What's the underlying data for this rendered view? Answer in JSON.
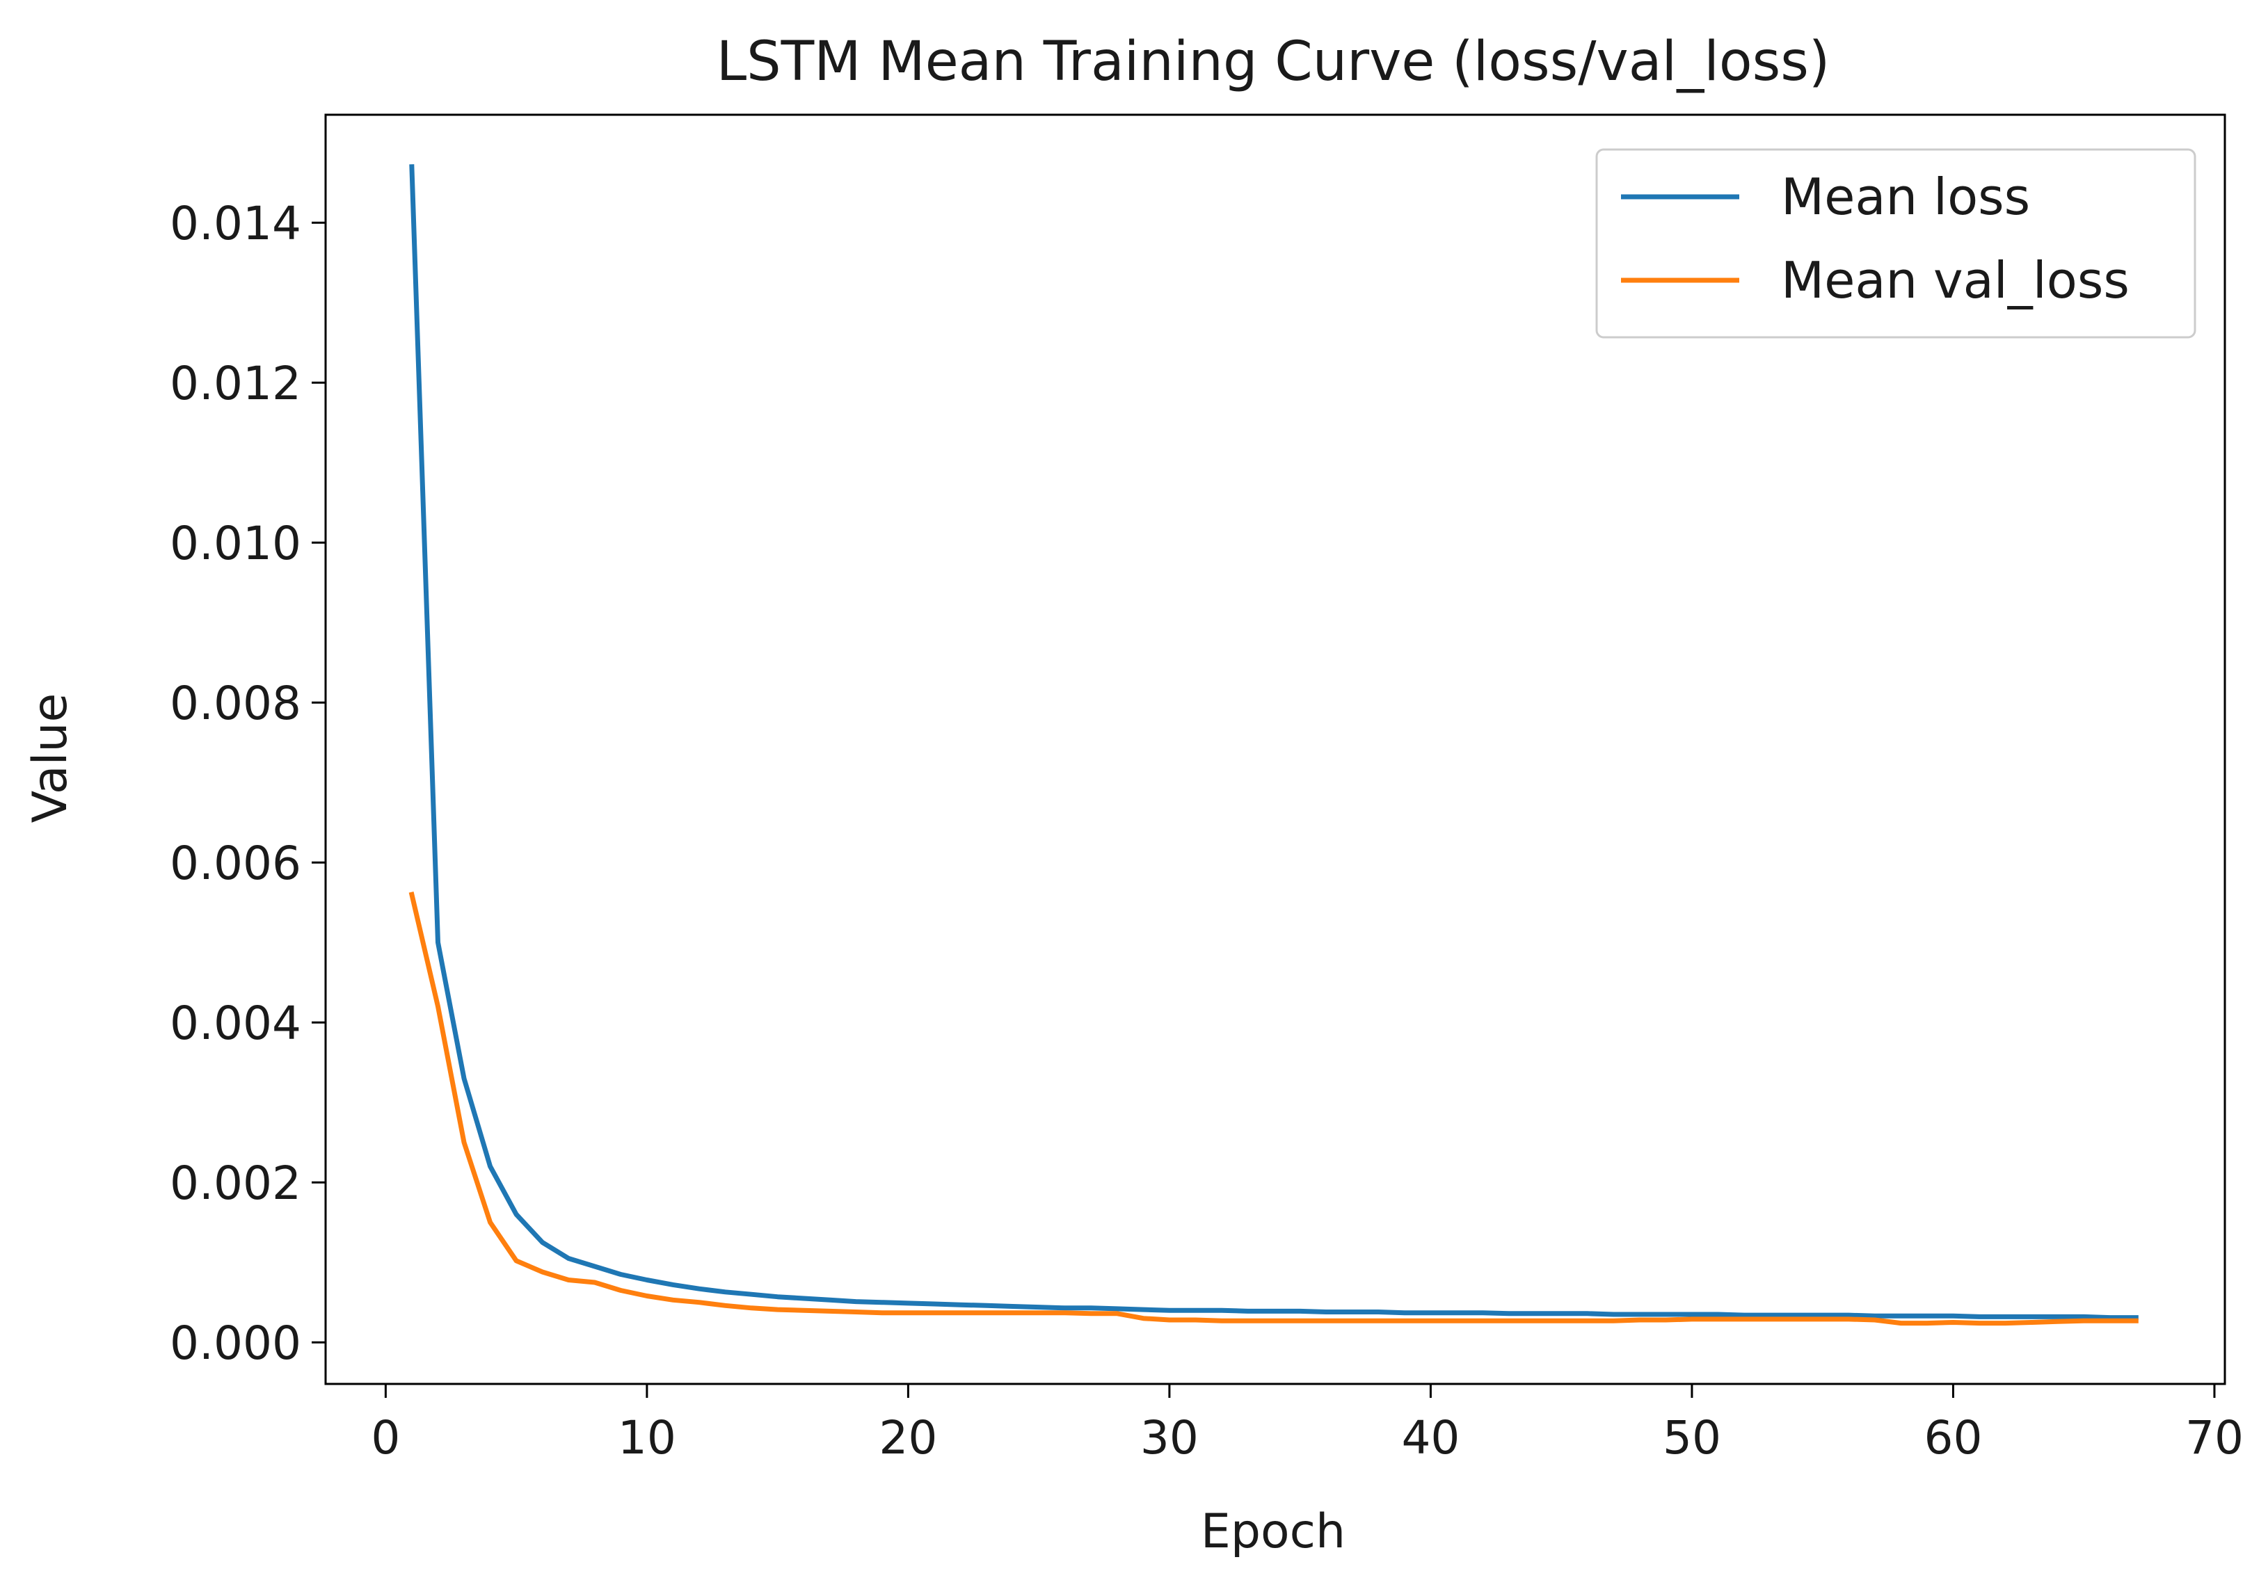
{
  "chart_data": {
    "type": "line",
    "title": "LSTM Mean Training Curve (loss/val_loss)",
    "xlabel": "Epoch",
    "ylabel": "Value",
    "xlim": [
      -2.3,
      70.4
    ],
    "ylim": [
      -0.00052,
      0.01535
    ],
    "xticks": [
      0,
      10,
      20,
      30,
      40,
      50,
      60,
      70
    ],
    "yticks": [
      0.0,
      0.002,
      0.004,
      0.006,
      0.008,
      0.01,
      0.012,
      0.014
    ],
    "ytick_labels": [
      "0.000",
      "0.002",
      "0.004",
      "0.006",
      "0.008",
      "0.010",
      "0.012",
      "0.014"
    ],
    "grid": false,
    "legend_position": "upper right",
    "x": [
      1,
      2,
      3,
      4,
      5,
      6,
      7,
      8,
      9,
      10,
      11,
      12,
      13,
      14,
      15,
      16,
      17,
      18,
      19,
      20,
      21,
      22,
      23,
      24,
      25,
      26,
      27,
      28,
      29,
      30,
      31,
      32,
      33,
      34,
      35,
      36,
      37,
      38,
      39,
      40,
      41,
      42,
      43,
      44,
      45,
      46,
      47,
      48,
      49,
      50,
      51,
      52,
      53,
      54,
      55,
      56,
      57,
      58,
      59,
      60,
      61,
      62,
      63,
      64,
      65,
      66,
      67
    ],
    "series": [
      {
        "name": "Mean loss",
        "color": "#1f77b4",
        "values": [
          0.0147,
          0.005,
          0.0033,
          0.0022,
          0.0016,
          0.00125,
          0.00105,
          0.00095,
          0.00085,
          0.00078,
          0.00072,
          0.00067,
          0.00063,
          0.0006,
          0.00057,
          0.00055,
          0.00053,
          0.00051,
          0.0005,
          0.00049,
          0.00048,
          0.00047,
          0.00046,
          0.00045,
          0.00044,
          0.00043,
          0.00043,
          0.00042,
          0.00041,
          0.0004,
          0.0004,
          0.0004,
          0.00039,
          0.00039,
          0.00039,
          0.00038,
          0.00038,
          0.00038,
          0.00037,
          0.00037,
          0.00037,
          0.00037,
          0.00036,
          0.00036,
          0.00036,
          0.00036,
          0.00035,
          0.00035,
          0.00035,
          0.00035,
          0.00035,
          0.00034,
          0.00034,
          0.00034,
          0.00034,
          0.00034,
          0.00033,
          0.00033,
          0.00033,
          0.00033,
          0.00032,
          0.00032,
          0.00032,
          0.00032,
          0.00032,
          0.00031,
          0.00031
        ]
      },
      {
        "name": "Mean val_loss",
        "color": "#ff7f0e",
        "values": [
          0.0056,
          0.0042,
          0.0025,
          0.0015,
          0.00102,
          0.00088,
          0.00078,
          0.00075,
          0.00065,
          0.00058,
          0.00053,
          0.0005,
          0.00046,
          0.00043,
          0.00041,
          0.0004,
          0.00039,
          0.00038,
          0.00037,
          0.00037,
          0.00037,
          0.00037,
          0.00037,
          0.00037,
          0.00037,
          0.00037,
          0.00036,
          0.00036,
          0.0003,
          0.00028,
          0.00028,
          0.00027,
          0.00027,
          0.00027,
          0.00027,
          0.00027,
          0.00027,
          0.00027,
          0.00027,
          0.00027,
          0.00027,
          0.00027,
          0.00027,
          0.00027,
          0.00027,
          0.00027,
          0.00027,
          0.00028,
          0.00028,
          0.00029,
          0.00029,
          0.00029,
          0.00029,
          0.00029,
          0.00029,
          0.00029,
          0.00028,
          0.00024,
          0.00024,
          0.00025,
          0.00024,
          0.00024,
          0.00025,
          0.00026,
          0.00027,
          0.00027,
          0.00027
        ]
      }
    ]
  }
}
